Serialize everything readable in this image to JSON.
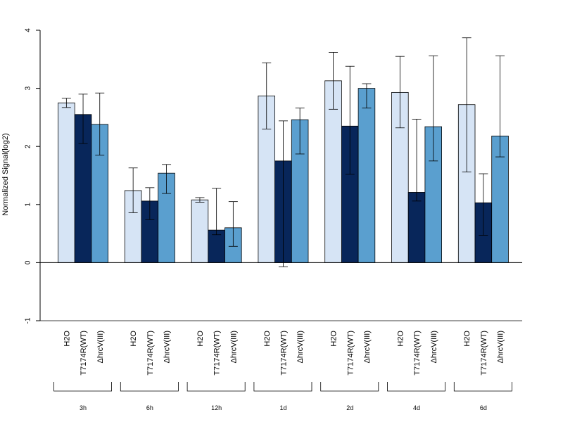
{
  "chart_data": {
    "type": "bar",
    "ylabel": "Normalized Signal(log2)",
    "ylim": [
      -1,
      4
    ],
    "yticks": [
      "-1",
      "0",
      "1",
      "2",
      "3",
      "4"
    ],
    "groups": [
      "3h",
      "6h",
      "12h",
      "1d",
      "2d",
      "4d",
      "6d"
    ],
    "series": [
      {
        "name": "H2O",
        "color": "#d6e4f5",
        "values": [
          2.75,
          1.24,
          1.08,
          2.87,
          3.13,
          2.93,
          2.72
        ],
        "err_low": [
          2.67,
          0.86,
          1.04,
          2.3,
          2.64,
          2.32,
          1.56
        ],
        "err_high": [
          2.83,
          1.63,
          1.12,
          3.44,
          3.62,
          3.55,
          3.87
        ]
      },
      {
        "name": "T7174R(WT)",
        "color": "#08265a",
        "values": [
          2.55,
          1.06,
          0.56,
          1.75,
          2.35,
          1.21,
          1.03
        ],
        "err_low": [
          2.05,
          0.74,
          0.48,
          -0.07,
          1.52,
          1.06,
          0.47
        ],
        "err_high": [
          2.9,
          1.29,
          1.28,
          2.44,
          3.38,
          2.47,
          1.53
        ]
      },
      {
        "name": "ΔhrcV(III)",
        "color": "#5a9fcf",
        "values": [
          2.38,
          1.54,
          0.6,
          2.46,
          3.0,
          2.34,
          2.18
        ],
        "err_low": [
          1.85,
          1.19,
          0.28,
          1.87,
          2.66,
          1.75,
          1.82
        ],
        "err_high": [
          2.92,
          1.69,
          1.05,
          2.66,
          3.08,
          3.56,
          3.56
        ]
      }
    ]
  }
}
